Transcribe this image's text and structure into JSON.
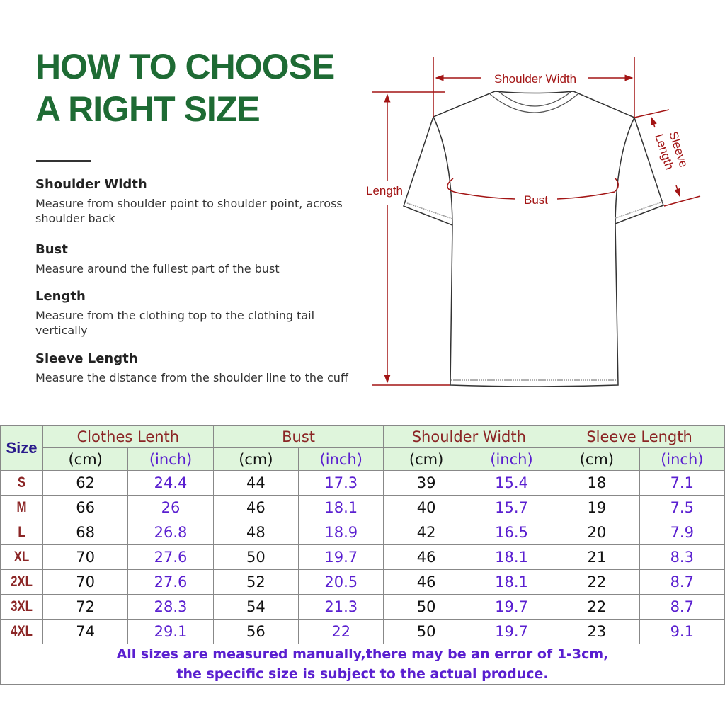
{
  "title": {
    "line1": "HOW TO CHOOSE",
    "line2": "A RIGHT SIZE"
  },
  "descriptions": [
    {
      "heading": "Shoulder Width",
      "text": "Measure from shoulder point to shoulder point, across shoulder back"
    },
    {
      "heading": "Bust",
      "text": "Measure around the fullest part of the bust"
    },
    {
      "heading": "Length",
      "text": "Measure from the clothing top to the clothing tail vertically"
    },
    {
      "heading": "Sleeve Length",
      "text": "Measure the distance from the shoulder line to the cuff"
    }
  ],
  "diagram": {
    "shoulder": "Shoulder Width",
    "length": "Length",
    "bust": "Bust",
    "sleeve1": "Sleeve",
    "sleeve2": "Length",
    "accent": "#a31515"
  },
  "table": {
    "size_header": "Size",
    "groups": [
      "Clothes Lenth",
      "Bust",
      "Shoulder Width",
      "Sleeve Length"
    ],
    "units": [
      "(cm)",
      "(inch)"
    ],
    "rows": [
      {
        "size": "S",
        "v": [
          "62",
          "24.4",
          "44",
          "17.3",
          "39",
          "15.4",
          "18",
          "7.1"
        ]
      },
      {
        "size": "M",
        "v": [
          "66",
          "26",
          "46",
          "18.1",
          "40",
          "15.7",
          "19",
          "7.5"
        ]
      },
      {
        "size": "L",
        "v": [
          "68",
          "26.8",
          "48",
          "18.9",
          "42",
          "16.5",
          "20",
          "7.9"
        ]
      },
      {
        "size": "XL",
        "v": [
          "70",
          "27.6",
          "50",
          "19.7",
          "46",
          "18.1",
          "21",
          "8.3"
        ]
      },
      {
        "size": "2XL",
        "v": [
          "70",
          "27.6",
          "52",
          "20.5",
          "46",
          "18.1",
          "22",
          "8.7"
        ]
      },
      {
        "size": "3XL",
        "v": [
          "72",
          "28.3",
          "54",
          "21.3",
          "50",
          "19.7",
          "22",
          "8.7"
        ]
      },
      {
        "size": "4XL",
        "v": [
          "74",
          "29.1",
          "56",
          "22",
          "50",
          "19.7",
          "23",
          "9.1"
        ]
      }
    ],
    "note1": "All sizes are measured manually,there may be an error of 1-3cm,",
    "note2": "the specific size is subject to the actual produce."
  },
  "colors": {
    "title": "#1e6b34",
    "header_bg": "#dff5dc",
    "header_text": "#8b2525",
    "inch": "#5a1fd0"
  }
}
